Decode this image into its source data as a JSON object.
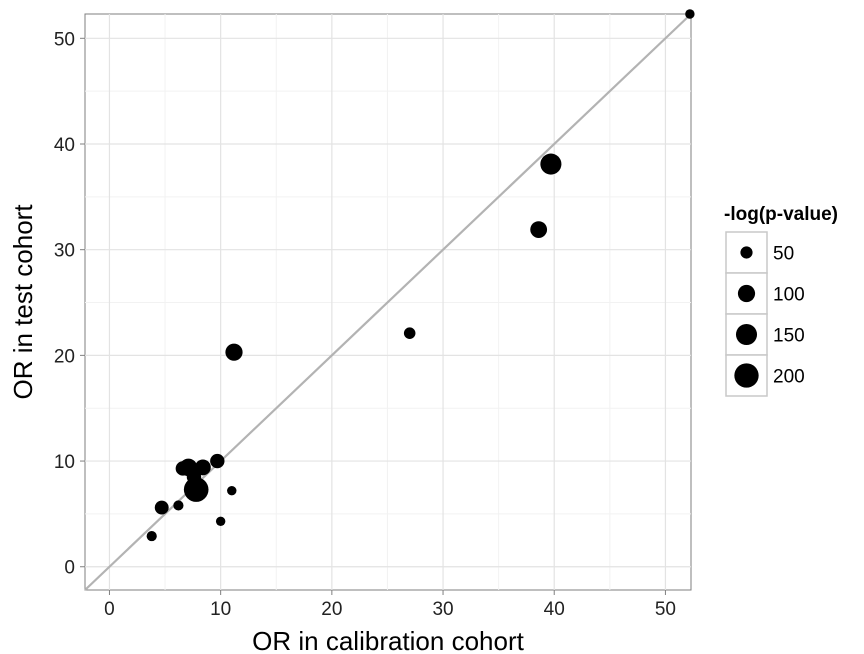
{
  "chart_data": {
    "type": "scatter",
    "title": "",
    "xlabel": "OR in calibration cohort",
    "ylabel": "OR in test cohort",
    "xlim": [
      -2.2,
      52.3
    ],
    "ylim": [
      -2.2,
      52.3
    ],
    "xticks": [
      0,
      10,
      20,
      30,
      40,
      50
    ],
    "yticks": [
      0,
      10,
      20,
      30,
      40,
      50
    ],
    "grid": true,
    "reference_line": "y = x",
    "legend": {
      "title": "-log(p-value)",
      "position": "right",
      "entries": [
        {
          "label": "50",
          "value": 50
        },
        {
          "label": "100",
          "value": 100
        },
        {
          "label": "150",
          "value": 150
        },
        {
          "label": "200",
          "value": 200
        }
      ]
    },
    "points": [
      {
        "x": 3.8,
        "y": 2.9,
        "size": 35
      },
      {
        "x": 4.7,
        "y": 5.6,
        "size": 65
      },
      {
        "x": 6.2,
        "y": 5.8,
        "size": 35
      },
      {
        "x": 6.6,
        "y": 9.3,
        "size": 70
      },
      {
        "x": 7.1,
        "y": 9.4,
        "size": 105
      },
      {
        "x": 7.6,
        "y": 8.5,
        "size": 70
      },
      {
        "x": 7.8,
        "y": 7.3,
        "size": 205
      },
      {
        "x": 8.4,
        "y": 9.4,
        "size": 85
      },
      {
        "x": 9.7,
        "y": 10.0,
        "size": 70
      },
      {
        "x": 10.0,
        "y": 4.3,
        "size": 30
      },
      {
        "x": 11.0,
        "y": 7.2,
        "size": 30
      },
      {
        "x": 11.2,
        "y": 20.3,
        "size": 100
      },
      {
        "x": 27.0,
        "y": 22.1,
        "size": 45
      },
      {
        "x": 38.6,
        "y": 31.9,
        "size": 95
      },
      {
        "x": 39.7,
        "y": 38.1,
        "size": 150
      },
      {
        "x": 52.2,
        "y": 52.3,
        "size": 30
      }
    ]
  }
}
